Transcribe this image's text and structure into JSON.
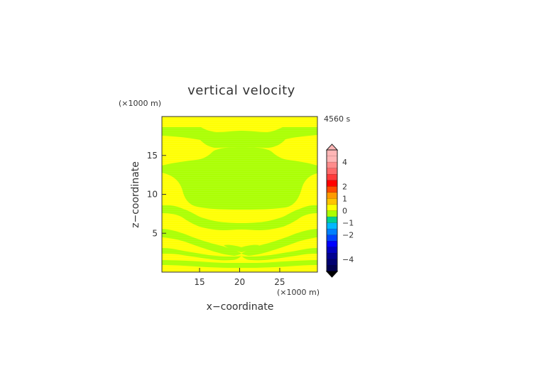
{
  "figure": {
    "title": "vertical velocity",
    "time_label": "4560 s",
    "z_unit_label": "(×1000 m)",
    "x_unit_label": "(×1000 m)"
  },
  "chart_data": {
    "type": "heatmap",
    "title": "vertical velocity",
    "xlabel": "x−coordinate",
    "ylabel": "z−coordinate",
    "xlim": [
      10.3,
      29.7
    ],
    "ylim": [
      0,
      20
    ],
    "x_ticks": [
      15,
      20,
      25
    ],
    "y_ticks": [
      5,
      10,
      15
    ],
    "x_tick_labels": [
      "15",
      "20",
      "25"
    ],
    "y_tick_labels": [
      "5",
      "10",
      "15"
    ],
    "x_unit": "(×1000 m)",
    "z_unit": "(×1000 m)",
    "time": "4560 s",
    "colorbar": {
      "ticks": [
        4,
        2,
        1,
        0,
        -1,
        -2,
        -4
      ],
      "tick_labels": [
        "4",
        "2",
        "1",
        "0",
        "−1",
        "−2",
        "−4"
      ],
      "bands": [
        {
          "min": 4.5,
          "max": 5.0,
          "color": "#ffb6b6"
        },
        {
          "min": 4.0,
          "max": 4.5,
          "color": "#ffb6b6"
        },
        {
          "min": 3.5,
          "max": 4.0,
          "color": "#ff8c8c"
        },
        {
          "min": 3.0,
          "max": 3.5,
          "color": "#ff6a6a"
        },
        {
          "min": 2.5,
          "max": 3.0,
          "color": "#ff3a3a"
        },
        {
          "min": 2.0,
          "max": 2.5,
          "color": "#ff0000"
        },
        {
          "min": 1.5,
          "max": 2.0,
          "color": "#ff4a00"
        },
        {
          "min": 1.0,
          "max": 1.5,
          "color": "#ff9a00"
        },
        {
          "min": 0.5,
          "max": 1.0,
          "color": "#ffc400"
        },
        {
          "min": 0.0,
          "max": 0.5,
          "color": "#ffff00"
        },
        {
          "min": -0.5,
          "max": 0.0,
          "color": "#aaff00"
        },
        {
          "min": -1.0,
          "max": -0.5,
          "color": "#00d090"
        },
        {
          "min": -1.5,
          "max": -1.0,
          "color": "#00b8ff"
        },
        {
          "min": -2.0,
          "max": -1.5,
          "color": "#0080ff"
        },
        {
          "min": -2.5,
          "max": -2.0,
          "color": "#0044ff"
        },
        {
          "min": -3.0,
          "max": -2.5,
          "color": "#0000ff"
        },
        {
          "min": -3.5,
          "max": -3.0,
          "color": "#0000bf"
        },
        {
          "min": -4.0,
          "max": -3.5,
          "color": "#00008f"
        },
        {
          "min": -4.5,
          "max": -4.0,
          "color": "#000070"
        },
        {
          "min": -5.0,
          "max": -4.5,
          "color": "#000050"
        }
      ]
    },
    "field_colors": {
      "positive": "#ffff00",
      "negative": "#aaff00"
    }
  }
}
